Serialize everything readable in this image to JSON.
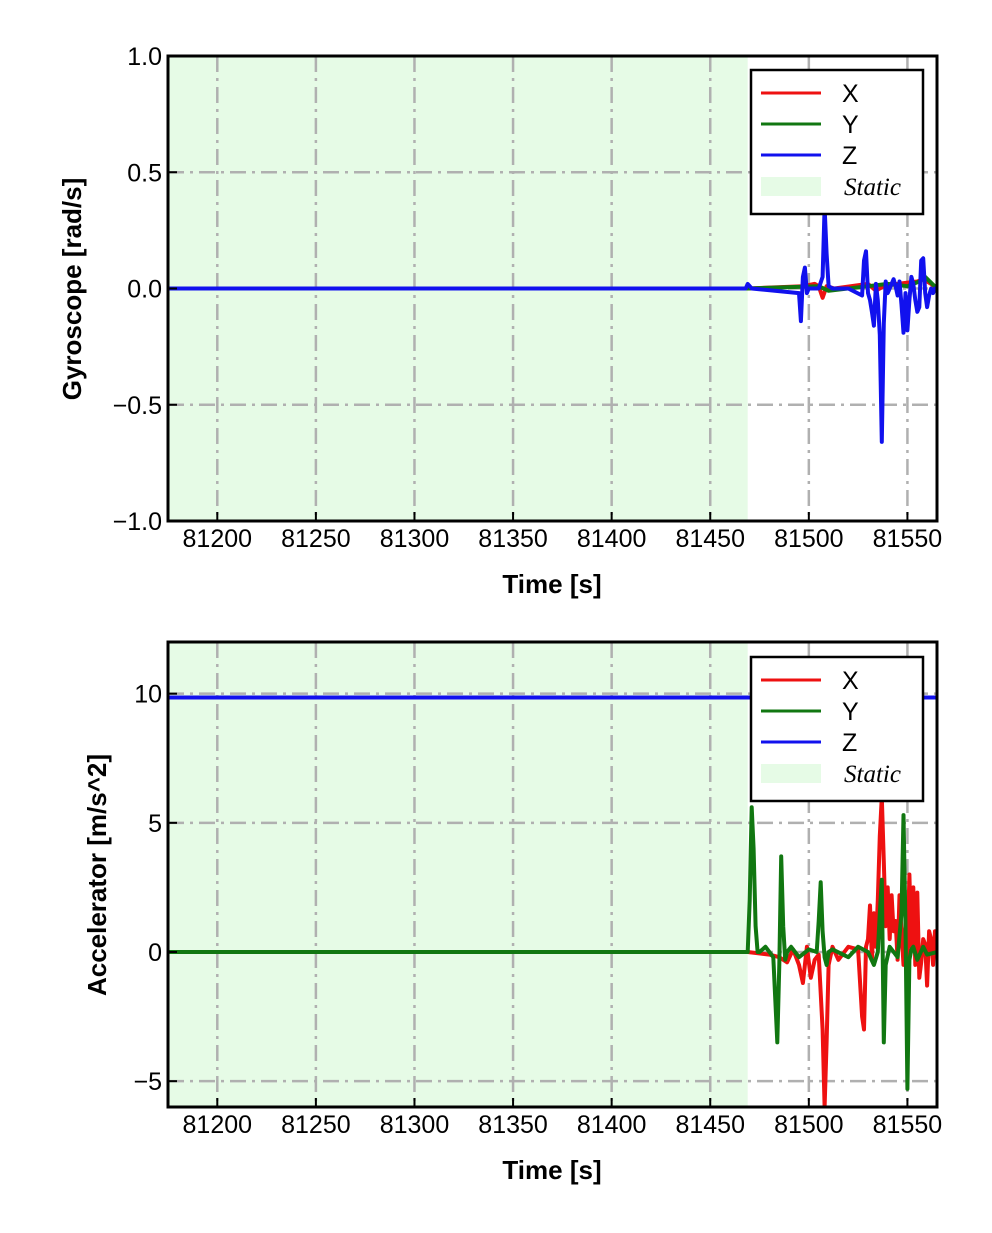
{
  "figure": {
    "colors": {
      "X": "#ee1111",
      "Y": "#117711",
      "Z": "#1111ee",
      "static": "#e6fbe6",
      "grid": "#b0b0b0"
    }
  },
  "chart_data": [
    {
      "type": "line",
      "ylabel": "Gyroscope [rad/s]",
      "xlabel": "Time [s]",
      "xlim": [
        81175,
        81565
      ],
      "ylim": [
        -1.0,
        1.0
      ],
      "xticks": [
        81200,
        81250,
        81300,
        81350,
        81400,
        81450,
        81500,
        81550
      ],
      "xtick_labels": [
        "81200",
        "81250",
        "81300",
        "81350",
        "81400",
        "81450",
        "81500",
        "81550"
      ],
      "yticks": [
        -1.0,
        -0.5,
        0.0,
        0.5,
        1.0
      ],
      "ytick_labels": [
        "−1.0",
        "−0.5",
        "0.0",
        "0.5",
        "1.0"
      ],
      "grid": true,
      "legend_position": "top-right",
      "static_region": {
        "x": [
          81175,
          81469
        ],
        "label": "Static"
      },
      "series": [
        {
          "name": "X",
          "color": "#ee1111",
          "x": [
            81175,
            81469,
            81497,
            81503,
            81505,
            81507,
            81509,
            81513,
            81530,
            81534,
            81538,
            81545,
            81555,
            81558,
            81562,
            81565
          ],
          "y": [
            0,
            0,
            0.01,
            0.02,
            0.01,
            -0.04,
            0.01,
            0,
            0.02,
            -0.01,
            0.01,
            0.02,
            0.03,
            0.04,
            0.02,
            0
          ]
        },
        {
          "name": "Y",
          "color": "#117711",
          "x": [
            81175,
            81469,
            81505,
            81510,
            81530,
            81540,
            81550,
            81556,
            81559,
            81565
          ],
          "y": [
            0,
            0,
            0.01,
            -0.01,
            0.01,
            0.02,
            0.01,
            0.03,
            0.05,
            0
          ]
        },
        {
          "name": "Z",
          "color": "#1111ee",
          "x": [
            81175,
            81468,
            81469,
            81470,
            81471,
            81495,
            81496,
            81497,
            81498,
            81499,
            81500,
            81505,
            81507,
            81508,
            81509,
            81510,
            81512,
            81520,
            81527,
            81528,
            81529,
            81530,
            81531,
            81532,
            81533,
            81534,
            81535,
            81536,
            81537,
            81538,
            81539,
            81540,
            81542,
            81543,
            81544,
            81545,
            81546,
            81547,
            81548,
            81549,
            81550,
            81551,
            81552,
            81553,
            81554,
            81555,
            81556,
            81557,
            81558,
            81559,
            81560,
            81561,
            81562,
            81563,
            81564,
            81565
          ],
          "y": [
            0,
            0,
            0.02,
            0.01,
            0,
            -0.02,
            -0.14,
            0.05,
            0.09,
            -0.02,
            0,
            0,
            0.05,
            0.35,
            0.15,
            0.01,
            0,
            0,
            -0.03,
            0.12,
            0.16,
            -0.02,
            -0.05,
            -0.1,
            -0.16,
            0.02,
            -0.05,
            -0.2,
            -0.66,
            -0.15,
            0.03,
            -0.02,
            0.02,
            0.04,
            0.01,
            -0.03,
            0.03,
            -0.07,
            -0.19,
            -0.02,
            -0.18,
            -0.05,
            0.05,
            0.02,
            -0.05,
            -0.1,
            -0.08,
            0.12,
            0.13,
            -0.02,
            -0.08,
            -0.03,
            0,
            -0.02,
            0,
            0
          ]
        }
      ]
    },
    {
      "type": "line",
      "ylabel": "Accelerator [m/s^2]",
      "xlabel": "Time [s]",
      "xlim": [
        81175,
        81565
      ],
      "ylim": [
        -6.0,
        12.0
      ],
      "xticks": [
        81200,
        81250,
        81300,
        81350,
        81400,
        81450,
        81500,
        81550
      ],
      "xtick_labels": [
        "81200",
        "81250",
        "81300",
        "81350",
        "81400",
        "81450",
        "81500",
        "81550"
      ],
      "yticks": [
        -5,
        0,
        5,
        10
      ],
      "ytick_labels": [
        "−5",
        "0",
        "5",
        "10"
      ],
      "grid": true,
      "legend_position": "top-right",
      "static_region": {
        "x": [
          81175,
          81469
        ],
        "label": "Static"
      },
      "series": [
        {
          "name": "X",
          "color": "#ee1111",
          "x": [
            81175,
            81469,
            81480,
            81485,
            81489,
            81492,
            81495,
            81497,
            81499,
            81501,
            81503,
            81505,
            81507,
            81508,
            81509,
            81510,
            81512,
            81515,
            81520,
            81525,
            81527,
            81528,
            81529,
            81530,
            81531,
            81532,
            81533,
            81534,
            81535,
            81536,
            81537,
            81538,
            81539,
            81540,
            81541,
            81542,
            81543,
            81544,
            81545,
            81546,
            81547,
            81548,
            81549,
            81550,
            81551,
            81552,
            81553,
            81554,
            81555,
            81556,
            81557,
            81558,
            81559,
            81560,
            81561,
            81562,
            81563,
            81564,
            81565
          ],
          "y": [
            0,
            0,
            -0.1,
            -0.2,
            -0.4,
            0.1,
            -0.5,
            -1.2,
            0.2,
            -1.0,
            -0.3,
            -0.1,
            -3.0,
            -6.0,
            -3.5,
            -0.5,
            0.2,
            -0.3,
            0.2,
            0.1,
            -2.5,
            -3.0,
            0.2,
            0.5,
            1.8,
            -0.3,
            1.5,
            0.2,
            2.0,
            4.5,
            6.0,
            3.5,
            1.0,
            2.5,
            0.5,
            2.2,
            0.8,
            1.2,
            -0.3,
            2.2,
            0.8,
            -0.5,
            1.0,
            -0.2,
            3.0,
            0.2,
            2.5,
            -0.5,
            2.3,
            -1.0,
            -0.4,
            0.5,
            0.3,
            -1.3,
            0.8,
            0.5,
            -0.5,
            0.8,
            0
          ]
        },
        {
          "name": "Y",
          "color": "#117711",
          "x": [
            81175,
            81469,
            81470,
            81471,
            81472,
            81473,
            81474,
            81475,
            81478,
            81482,
            81484,
            81485,
            81486,
            81487,
            81488,
            81489,
            81491,
            81495,
            81500,
            81504,
            81505,
            81506,
            81507,
            81508,
            81509,
            81510,
            81512,
            81520,
            81525,
            81530,
            81533,
            81535,
            81536,
            81537,
            81538,
            81539,
            81541,
            81545,
            81547,
            81548,
            81549,
            81550,
            81551,
            81552,
            81553,
            81555,
            81558,
            81560,
            81565
          ],
          "y": [
            0,
            0,
            2.0,
            5.6,
            4.0,
            1.0,
            0,
            0,
            0.2,
            -0.2,
            -3.5,
            -0.5,
            3.7,
            1.0,
            -0.3,
            0,
            0.2,
            -0.2,
            0.1,
            0,
            1.2,
            2.7,
            0.8,
            -0.2,
            -0.5,
            0,
            0.1,
            -0.2,
            0.2,
            0,
            -0.5,
            0,
            1.5,
            2.8,
            -3.5,
            -0.5,
            0.2,
            -0.2,
            1.5,
            5.3,
            1.0,
            -5.3,
            -0.3,
            0.1,
            0.2,
            -0.3,
            0.2,
            -0.1,
            0
          ]
        },
        {
          "name": "Z",
          "color": "#1111ee",
          "x": [
            81175,
            81565
          ],
          "y": [
            9.85,
            9.85
          ]
        }
      ]
    }
  ]
}
